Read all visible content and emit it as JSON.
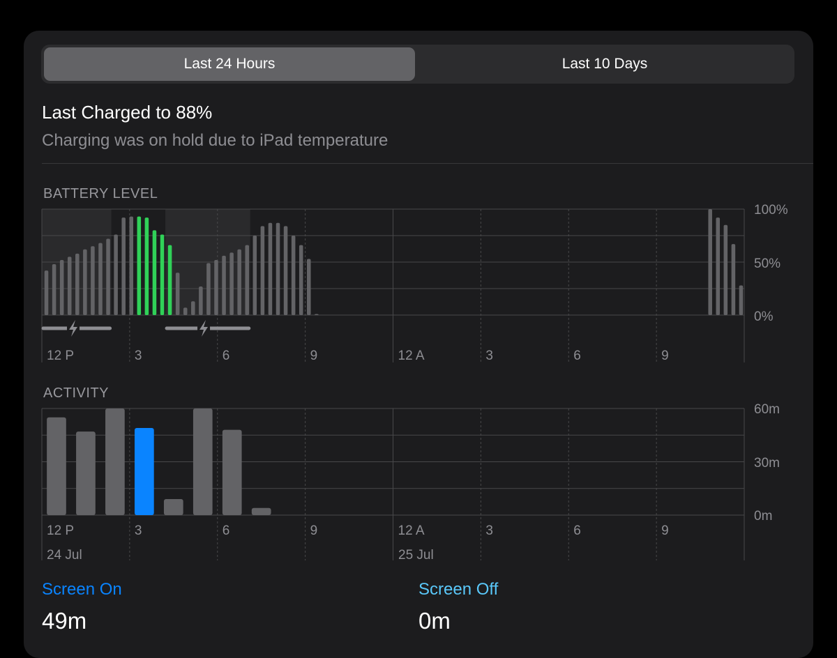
{
  "tabs": [
    {
      "label": "Last 24 Hours",
      "active": true
    },
    {
      "label": "Last 10 Days",
      "active": false
    }
  ],
  "charge": {
    "title": "Last Charged to 88%",
    "subtitle": "Charging was on hold due to iPad temperature"
  },
  "colors": {
    "bar_gray": "#636366",
    "bar_green": "#30d158",
    "bar_blue": "#0a84ff",
    "grid": "#48484a",
    "charging_band": "#2a2a2c"
  },
  "chart_data": [
    {
      "type": "bar",
      "title": "BATTERY LEVEL",
      "unit": "%",
      "ylim": [
        0,
        100
      ],
      "y_ticks": [
        "100%",
        "50%",
        "0%"
      ],
      "x_tick_labels": [
        "12 P",
        "3",
        "6",
        "9",
        "12 A",
        "3",
        "6",
        "9"
      ],
      "grid": true,
      "series": [
        {
          "values": [
            42,
            48,
            52,
            55,
            58,
            62,
            65,
            68,
            72,
            76,
            92,
            93,
            93,
            92,
            80,
            76,
            66,
            40,
            7,
            13,
            27,
            49,
            52,
            56,
            59,
            62,
            66,
            75,
            84,
            87,
            87,
            84,
            75,
            66,
            53,
            1,
            null,
            null,
            null,
            null,
            null,
            null,
            null,
            null,
            null,
            null,
            null,
            null,
            null,
            null,
            null,
            null,
            null,
            null,
            null,
            null,
            null,
            null,
            null,
            null,
            null,
            null,
            null,
            null,
            null,
            null,
            null,
            null,
            null,
            null,
            null,
            null,
            null,
            null,
            null,
            null,
            null,
            null,
            null,
            null,
            null,
            null,
            null,
            null,
            null,
            null,
            100,
            92,
            85,
            67,
            28
          ],
          "highlight_indices": [
            12,
            13,
            14,
            15,
            16
          ]
        }
      ],
      "charging_periods": [
        [
          0,
          8
        ],
        [
          16,
          26
        ]
      ]
    },
    {
      "type": "bar",
      "title": "ACTIVITY",
      "unit": "minutes",
      "ylim": [
        0,
        60
      ],
      "y_ticks": [
        "60m",
        "30m",
        "0m"
      ],
      "x_tick_labels": [
        "12 P",
        "3",
        "6",
        "9",
        "12 A",
        "3",
        "6",
        "9"
      ],
      "date_labels": [
        "24 Jul",
        "25 Jul"
      ],
      "grid": true,
      "series": [
        {
          "values": [
            55,
            47,
            60,
            49,
            9,
            60,
            48,
            4,
            null,
            null,
            null,
            null,
            null,
            null,
            null,
            null,
            null,
            null,
            null,
            null,
            null,
            null,
            null,
            null
          ],
          "highlight_index": 3
        }
      ]
    }
  ],
  "stats": {
    "screen_on": {
      "label": "Screen On",
      "value": "49m"
    },
    "screen_off": {
      "label": "Screen Off",
      "value": "0m"
    }
  }
}
